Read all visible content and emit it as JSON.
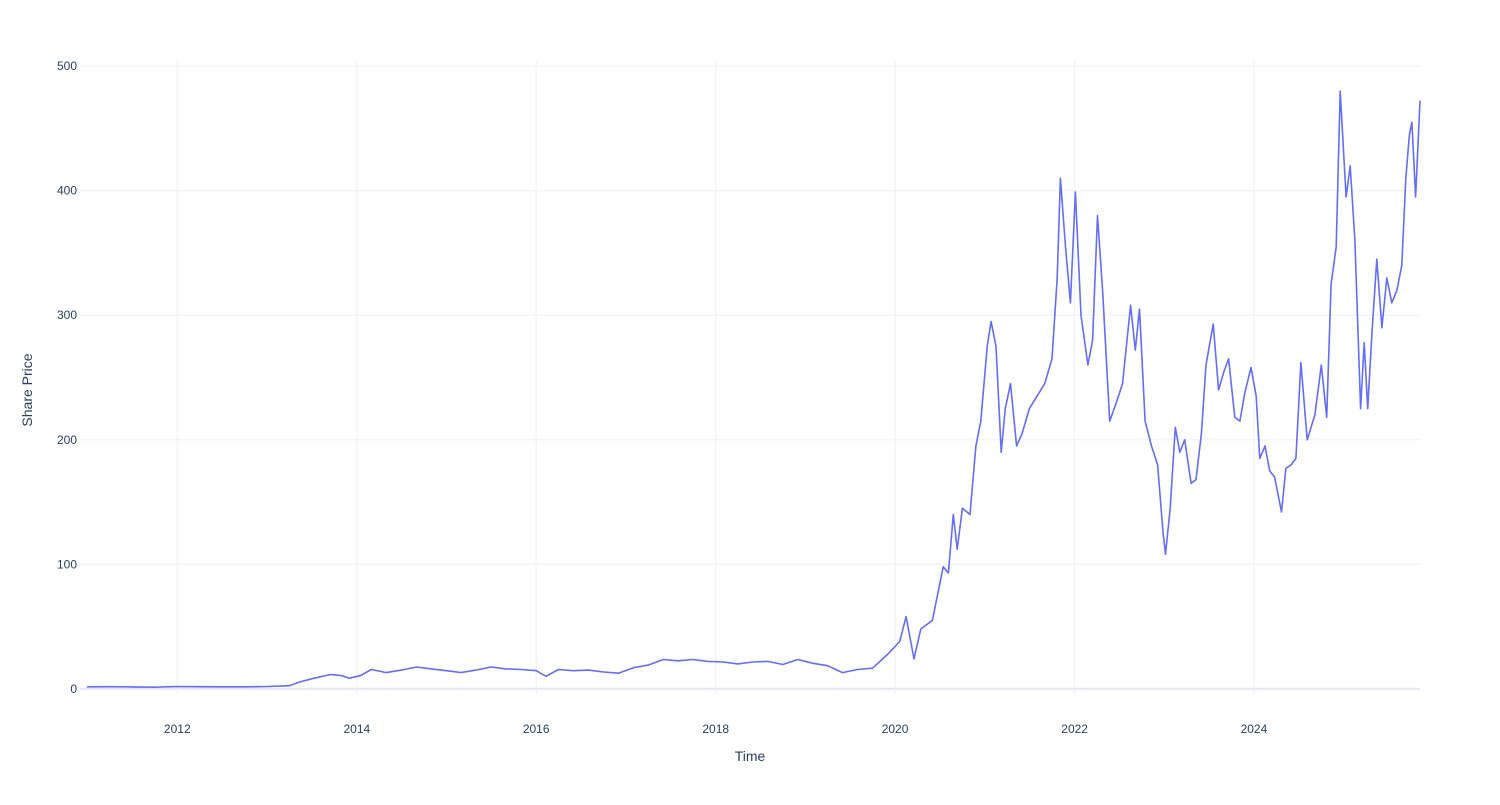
{
  "chart_data": {
    "type": "line",
    "title": "",
    "xlabel": "Time",
    "ylabel": "Share Price",
    "xlim": [
      "2010-12-01",
      "2025-11-07"
    ],
    "ylim": [
      -5,
      505
    ],
    "x_ticks": [
      "2012",
      "2014",
      "2016",
      "2018",
      "2020",
      "2022",
      "2024"
    ],
    "y_ticks": [
      0,
      100,
      200,
      300,
      400,
      500
    ],
    "grid": true,
    "legend": "none",
    "line_color": "#636efa",
    "grid_color": "#eef0f7",
    "series": [
      {
        "points": [
          [
            "2011-01-01",
            1.6
          ],
          [
            "2011-04-01",
            1.7
          ],
          [
            "2011-07-01",
            1.5
          ],
          [
            "2011-10-01",
            1.3
          ],
          [
            "2012-01-01",
            1.8
          ],
          [
            "2012-04-01",
            1.7
          ],
          [
            "2012-07-01",
            1.6
          ],
          [
            "2012-10-01",
            1.6
          ],
          [
            "2013-01-01",
            1.8
          ],
          [
            "2013-04-01",
            2.5
          ],
          [
            "2013-05-15",
            5.5
          ],
          [
            "2013-07-01",
            8
          ],
          [
            "2013-09-15",
            11.5
          ],
          [
            "2013-11-01",
            10.5
          ],
          [
            "2013-12-01",
            8.5
          ],
          [
            "2014-01-15",
            10.5
          ],
          [
            "2014-03-01",
            15.5
          ],
          [
            "2014-05-01",
            13
          ],
          [
            "2014-07-01",
            15
          ],
          [
            "2014-09-01",
            17.5
          ],
          [
            "2014-11-01",
            16
          ],
          [
            "2015-01-01",
            14.5
          ],
          [
            "2015-03-01",
            13
          ],
          [
            "2015-05-01",
            15
          ],
          [
            "2015-07-01",
            17.5
          ],
          [
            "2015-09-01",
            16
          ],
          [
            "2015-11-01",
            15.5
          ],
          [
            "2016-01-01",
            14.5
          ],
          [
            "2016-02-10",
            10
          ],
          [
            "2016-04-01",
            15.5
          ],
          [
            "2016-06-01",
            14.5
          ],
          [
            "2016-08-01",
            15
          ],
          [
            "2016-10-01",
            13.5
          ],
          [
            "2016-12-01",
            12.5
          ],
          [
            "2017-02-01",
            17
          ],
          [
            "2017-04-01",
            19
          ],
          [
            "2017-06-01",
            23.5
          ],
          [
            "2017-08-01",
            22.5
          ],
          [
            "2017-10-01",
            23.5
          ],
          [
            "2017-12-01",
            22
          ],
          [
            "2018-02-01",
            21.5
          ],
          [
            "2018-04-01",
            20
          ],
          [
            "2018-06-01",
            21.5
          ],
          [
            "2018-08-01",
            22
          ],
          [
            "2018-10-01",
            19.5
          ],
          [
            "2018-12-01",
            23.5
          ],
          [
            "2019-02-01",
            20.5
          ],
          [
            "2019-04-01",
            18.5
          ],
          [
            "2019-06-01",
            13
          ],
          [
            "2019-08-01",
            15.5
          ],
          [
            "2019-10-01",
            16.5
          ],
          [
            "2019-12-01",
            27.5
          ],
          [
            "2020-01-20",
            38
          ],
          [
            "2020-02-15",
            58
          ],
          [
            "2020-03-18",
            24
          ],
          [
            "2020-04-15",
            48
          ],
          [
            "2020-06-01",
            55
          ],
          [
            "2020-07-15",
            98
          ],
          [
            "2020-08-05",
            93
          ],
          [
            "2020-08-25",
            140
          ],
          [
            "2020-09-10",
            112
          ],
          [
            "2020-10-01",
            145
          ],
          [
            "2020-11-01",
            140
          ],
          [
            "2020-11-25",
            195
          ],
          [
            "2020-12-15",
            215
          ],
          [
            "2021-01-10",
            275
          ],
          [
            "2021-01-26",
            295
          ],
          [
            "2021-02-15",
            275
          ],
          [
            "2021-03-08",
            190
          ],
          [
            "2021-03-25",
            225
          ],
          [
            "2021-04-15",
            245
          ],
          [
            "2021-05-10",
            195
          ],
          [
            "2021-06-01",
            205
          ],
          [
            "2021-07-01",
            225
          ],
          [
            "2021-08-01",
            235
          ],
          [
            "2021-09-01",
            245
          ],
          [
            "2021-10-01",
            265
          ],
          [
            "2021-10-22",
            330
          ],
          [
            "2021-11-04",
            410
          ],
          [
            "2021-11-25",
            355
          ],
          [
            "2021-12-15",
            310
          ],
          [
            "2022-01-04",
            399
          ],
          [
            "2022-01-27",
            300
          ],
          [
            "2022-02-24",
            260
          ],
          [
            "2022-03-15",
            280
          ],
          [
            "2022-04-04",
            380
          ],
          [
            "2022-04-25",
            320
          ],
          [
            "2022-05-24",
            215
          ],
          [
            "2022-06-20",
            230
          ],
          [
            "2022-07-15",
            245
          ],
          [
            "2022-08-17",
            308
          ],
          [
            "2022-09-05",
            272
          ],
          [
            "2022-09-22",
            305
          ],
          [
            "2022-10-15",
            215
          ],
          [
            "2022-11-10",
            195
          ],
          [
            "2022-12-05",
            180
          ],
          [
            "2022-12-27",
            125
          ],
          [
            "2023-01-06",
            108
          ],
          [
            "2023-01-25",
            145
          ],
          [
            "2023-02-15",
            210
          ],
          [
            "2023-03-05",
            190
          ],
          [
            "2023-03-25",
            200
          ],
          [
            "2023-04-20",
            165
          ],
          [
            "2023-05-10",
            168
          ],
          [
            "2023-06-01",
            205
          ],
          [
            "2023-06-20",
            260
          ],
          [
            "2023-07-19",
            293
          ],
          [
            "2023-08-10",
            240
          ],
          [
            "2023-09-01",
            255
          ],
          [
            "2023-09-20",
            265
          ],
          [
            "2023-10-15",
            218
          ],
          [
            "2023-11-05",
            215
          ],
          [
            "2023-11-25",
            238
          ],
          [
            "2023-12-20",
            258
          ],
          [
            "2024-01-10",
            235
          ],
          [
            "2024-01-25",
            185
          ],
          [
            "2024-02-15",
            195
          ],
          [
            "2024-03-05",
            175
          ],
          [
            "2024-03-25",
            170
          ],
          [
            "2024-04-22",
            142
          ],
          [
            "2024-05-10",
            177
          ],
          [
            "2024-06-01",
            180
          ],
          [
            "2024-06-20",
            185
          ],
          [
            "2024-07-10",
            262
          ],
          [
            "2024-08-05",
            200
          ],
          [
            "2024-09-05",
            220
          ],
          [
            "2024-10-01",
            260
          ],
          [
            "2024-10-23",
            218
          ],
          [
            "2024-11-10",
            325
          ],
          [
            "2024-12-01",
            355
          ],
          [
            "2024-12-17",
            480
          ],
          [
            "2025-01-10",
            395
          ],
          [
            "2025-01-27",
            420
          ],
          [
            "2025-02-15",
            360
          ],
          [
            "2025-03-10",
            225
          ],
          [
            "2025-03-25",
            278
          ],
          [
            "2025-04-08",
            225
          ],
          [
            "2025-04-25",
            285
          ],
          [
            "2025-05-15",
            345
          ],
          [
            "2025-06-05",
            290
          ],
          [
            "2025-06-25",
            330
          ],
          [
            "2025-07-15",
            310
          ],
          [
            "2025-08-05",
            320
          ],
          [
            "2025-08-25",
            340
          ],
          [
            "2025-09-10",
            410
          ],
          [
            "2025-09-25",
            445
          ],
          [
            "2025-10-05",
            455
          ],
          [
            "2025-10-20",
            395
          ],
          [
            "2025-11-07",
            472
          ]
        ]
      }
    ]
  }
}
